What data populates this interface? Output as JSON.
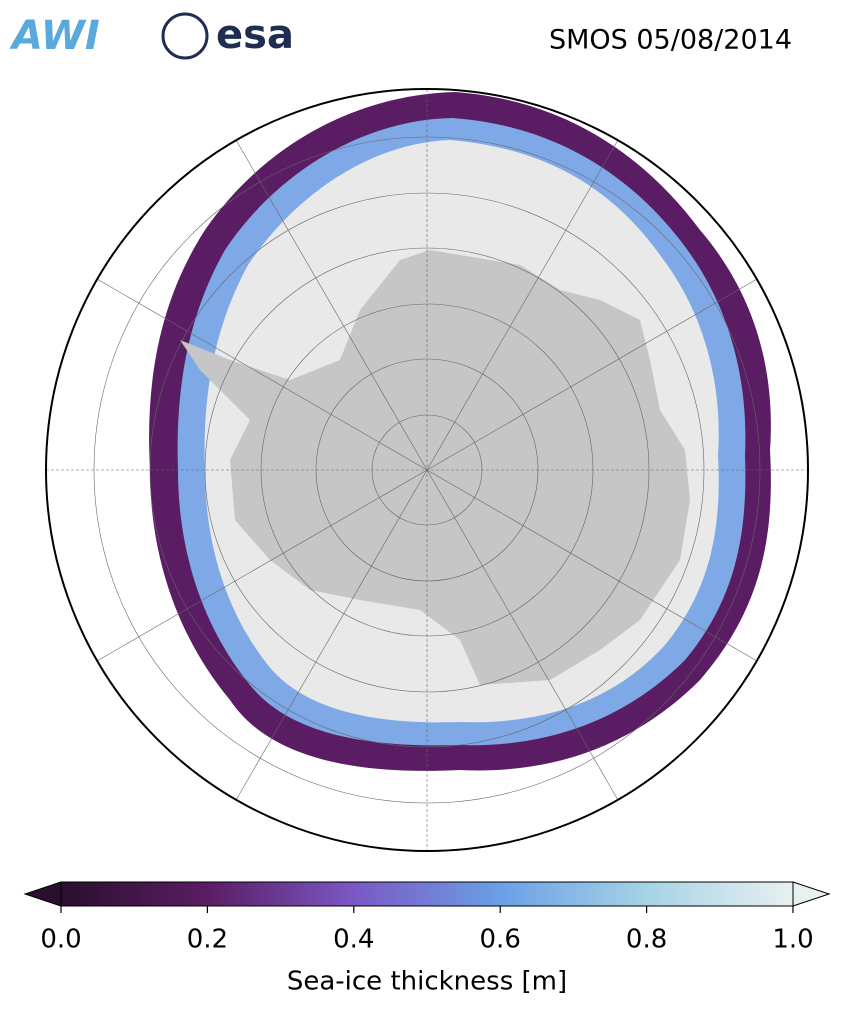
{
  "header": {
    "logos": [
      "AWI",
      "esa"
    ],
    "title": "SMOS 05/08/2014"
  },
  "colorbar": {
    "label": "Sea-ice thickness [m]",
    "lim": [
      0,
      1
    ],
    "ticks": [
      {
        "value": 0,
        "label": "0.0"
      },
      0.2,
      0.4,
      0.6,
      0.8,
      {
        "value": 1,
        "label": "1.0"
      }
    ],
    "colors": [
      "#2a0f2e",
      "#5a1d63",
      "#7a58c4",
      "#6b9fe6",
      "#a6d3e6",
      "#e8f0f0"
    ]
  }
}
